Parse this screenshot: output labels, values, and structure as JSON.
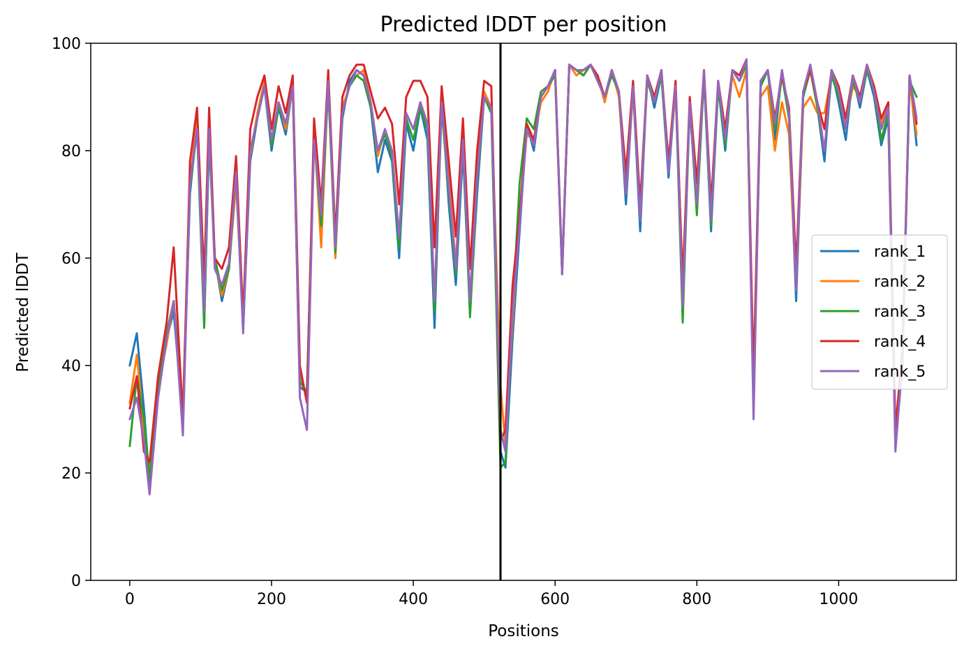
{
  "chart_data": {
    "type": "line",
    "title": "Predicted lDDT per position",
    "xlabel": "Positions",
    "ylabel": "Predicted lDDT",
    "xlim": [
      -55,
      1166
    ],
    "ylim": [
      0,
      100
    ],
    "xticks": [
      0,
      200,
      400,
      600,
      800,
      1000
    ],
    "yticks": [
      0,
      20,
      40,
      60,
      80,
      100
    ],
    "xtick_labels": [
      "0",
      "200",
      "400",
      "600",
      "800",
      "1000"
    ],
    "ytick_labels": [
      "0",
      "20",
      "40",
      "60",
      "80",
      "100"
    ],
    "grid": false,
    "legend": "center-right",
    "chain_break_x": 523,
    "sequence_length": 1110,
    "x": [
      0,
      10,
      20,
      28,
      40,
      52,
      62,
      75,
      85,
      95,
      105,
      112,
      120,
      130,
      140,
      150,
      160,
      170,
      180,
      190,
      200,
      210,
      220,
      230,
      240,
      250,
      260,
      270,
      280,
      290,
      300,
      310,
      320,
      330,
      340,
      350,
      360,
      370,
      380,
      390,
      400,
      410,
      420,
      430,
      440,
      450,
      460,
      470,
      480,
      490,
      500,
      510,
      523,
      530,
      540,
      550,
      560,
      570,
      580,
      590,
      600,
      610,
      620,
      630,
      640,
      650,
      660,
      670,
      680,
      690,
      700,
      710,
      720,
      730,
      740,
      750,
      760,
      770,
      780,
      790,
      800,
      810,
      820,
      830,
      840,
      850,
      860,
      870,
      880,
      890,
      900,
      910,
      920,
      930,
      940,
      950,
      960,
      970,
      980,
      990,
      1000,
      1010,
      1020,
      1030,
      1040,
      1050,
      1060,
      1070,
      1080,
      1090,
      1100,
      1110
    ],
    "series": [
      {
        "name": "rank_1",
        "color": "#1f77b4",
        "values": [
          40,
          46,
          32,
          18,
          35,
          45,
          50,
          30,
          72,
          85,
          48,
          82,
          60,
          52,
          58,
          75,
          47,
          78,
          86,
          92,
          80,
          88,
          83,
          92,
          36,
          35,
          82,
          70,
          92,
          62,
          86,
          93,
          95,
          94,
          88,
          76,
          82,
          78,
          60,
          85,
          80,
          88,
          82,
          47,
          90,
          70,
          55,
          80,
          50,
          72,
          90,
          88,
          24,
          21,
          45,
          65,
          85,
          80,
          90,
          92,
          95,
          58,
          96,
          95,
          94,
          96,
          93,
          90,
          95,
          91,
          70,
          92,
          65,
          94,
          88,
          94,
          75,
          92,
          55,
          88,
          70,
          94,
          65,
          92,
          80,
          95,
          93,
          96,
          35,
          92,
          95,
          82,
          95,
          86,
          52,
          90,
          96,
          88,
          78,
          95,
          89,
          82,
          94,
          88,
          95,
          90,
          81,
          86,
          25,
          40,
          94,
          81
        ]
      },
      {
        "name": "rank_2",
        "color": "#ff7f0e",
        "values": [
          33,
          42,
          28,
          20,
          36,
          44,
          52,
          32,
          74,
          86,
          50,
          84,
          60,
          53,
          58,
          74,
          48,
          79,
          87,
          93,
          81,
          89,
          84,
          92,
          38,
          34,
          84,
          62,
          93,
          60,
          88,
          92,
          94,
          95,
          89,
          79,
          84,
          80,
          63,
          87,
          84,
          89,
          85,
          52,
          89,
          74,
          59,
          83,
          52,
          76,
          91,
          88,
          36,
          25,
          48,
          68,
          83,
          82,
          89,
          91,
          95,
          58,
          96,
          94,
          95,
          96,
          94,
          89,
          95,
          90,
          72,
          91,
          68,
          93,
          89,
          95,
          77,
          91,
          56,
          89,
          73,
          95,
          67,
          93,
          82,
          94,
          90,
          95,
          36,
          90,
          92,
          80,
          89,
          83,
          54,
          88,
          90,
          87,
          87,
          94,
          91,
          85,
          92,
          90,
          96,
          91,
          85,
          89,
          27,
          42,
          93,
          83
        ]
      },
      {
        "name": "rank_3",
        "color": "#2ca02c",
        "values": [
          25,
          38,
          30,
          19,
          36,
          46,
          52,
          30,
          73,
          84,
          47,
          83,
          60,
          54,
          58,
          76,
          48,
          80,
          86,
          92,
          81,
          88,
          85,
          92,
          37,
          35,
          83,
          66,
          92,
          61,
          87,
          92,
          94,
          93,
          88,
          80,
          83,
          79,
          62,
          86,
          82,
          88,
          84,
          50,
          88,
          72,
          57,
          82,
          49,
          74,
          90,
          87,
          21,
          22,
          50,
          74,
          86,
          84,
          91,
          92,
          94,
          57,
          96,
          95,
          94,
          96,
          93,
          90,
          94,
          91,
          73,
          92,
          69,
          93,
          89,
          94,
          76,
          92,
          48,
          89,
          68,
          94,
          66,
          92,
          81,
          95,
          93,
          96,
          34,
          92,
          95,
          84,
          94,
          86,
          55,
          90,
          95,
          88,
          80,
          94,
          90,
          84,
          93,
          89,
          95,
          91,
          82,
          87,
          26,
          41,
          93,
          90
        ]
      },
      {
        "name": "rank_4",
        "color": "#d62728",
        "values": [
          32,
          38,
          24,
          22,
          38,
          48,
          62,
          30,
          78,
          88,
          56,
          88,
          60,
          58,
          62,
          79,
          49,
          84,
          90,
          94,
          84,
          92,
          87,
          94,
          40,
          33,
          86,
          70,
          95,
          64,
          90,
          94,
          96,
          96,
          91,
          86,
          88,
          85,
          70,
          90,
          93,
          93,
          90,
          62,
          92,
          78,
          64,
          86,
          58,
          80,
          93,
          92,
          26,
          28,
          55,
          68,
          85,
          82,
          90,
          92,
          95,
          57,
          96,
          95,
          95,
          96,
          94,
          90,
          95,
          91,
          76,
          93,
          70,
          94,
          90,
          95,
          78,
          93,
          55,
          90,
          74,
          95,
          70,
          93,
          84,
          95,
          94,
          97,
          38,
          93,
          95,
          86,
          94,
          88,
          58,
          91,
          95,
          89,
          84,
          95,
          92,
          86,
          94,
          90,
          96,
          92,
          86,
          89,
          28,
          43,
          94,
          85
        ]
      },
      {
        "name": "rank_5",
        "color": "#9467bd",
        "values": [
          30,
          34,
          26,
          16,
          34,
          45,
          52,
          27,
          74,
          84,
          50,
          84,
          58,
          55,
          59,
          76,
          46,
          80,
          86,
          92,
          82,
          89,
          85,
          92,
          34,
          28,
          82,
          68,
          93,
          62,
          87,
          92,
          95,
          94,
          89,
          80,
          84,
          80,
          64,
          87,
          84,
          89,
          85,
          52,
          89,
          73,
          58,
          82,
          52,
          75,
          90,
          88,
          28,
          24,
          50,
          66,
          84,
          81,
          90,
          92,
          95,
          57,
          96,
          95,
          95,
          96,
          93,
          90,
          95,
          91,
          72,
          92,
          67,
          94,
          89,
          95,
          76,
          92,
          51,
          89,
          70,
          95,
          67,
          93,
          82,
          95,
          93,
          97,
          30,
          93,
          95,
          85,
          95,
          87,
          54,
          91,
          96,
          89,
          80,
          95,
          91,
          84,
          94,
          89,
          96,
          91,
          84,
          88,
          24,
          41,
          94,
          86
        ]
      }
    ]
  }
}
